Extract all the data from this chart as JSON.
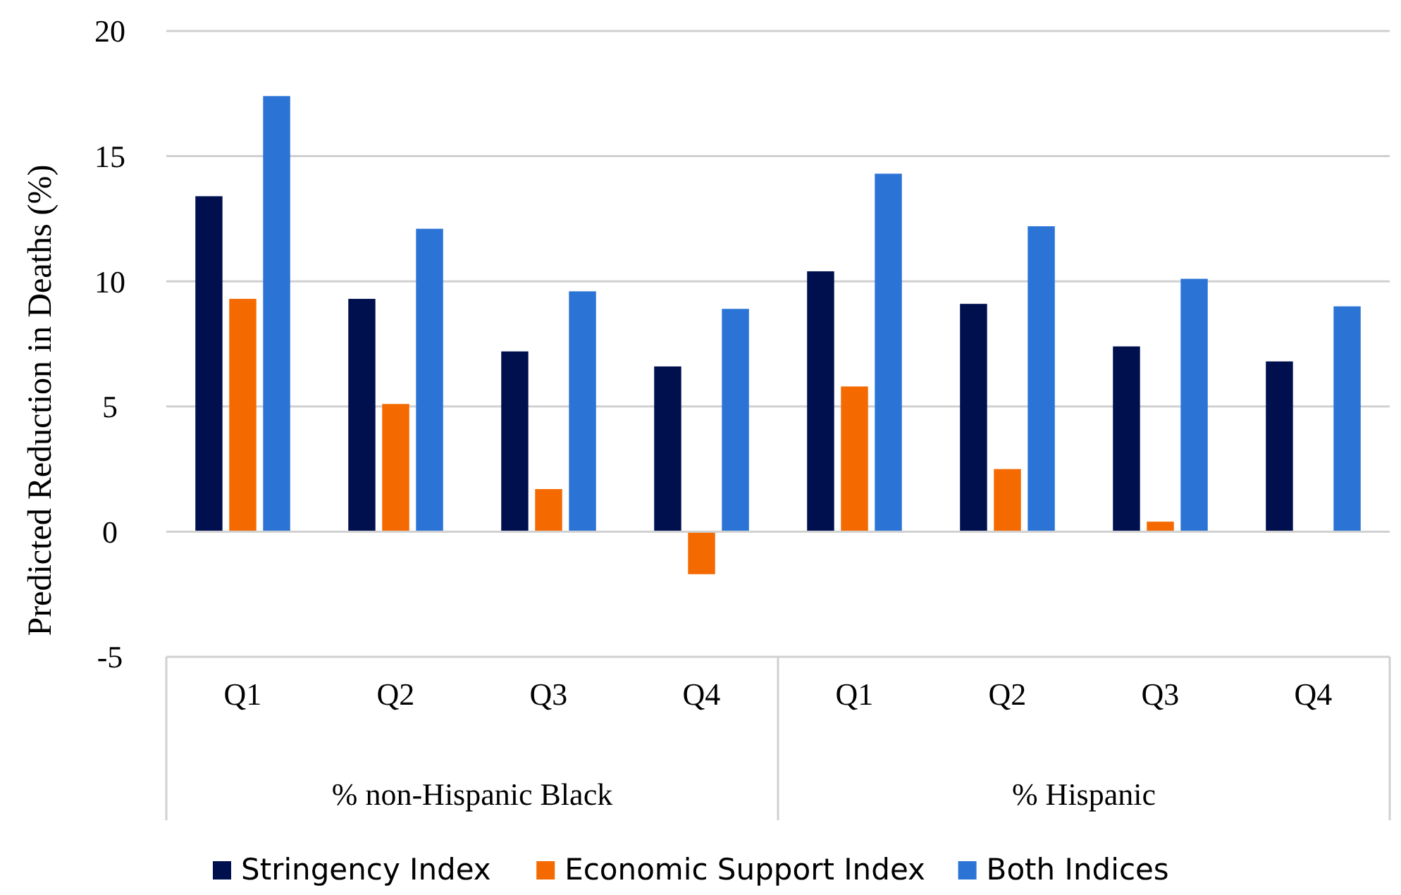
{
  "chart_data": {
    "type": "bar",
    "ylabel": "Predicted Reduction in Deaths (%)",
    "categories": [
      "Q1",
      "Q2",
      "Q3",
      "Q4",
      "Q1",
      "Q2",
      "Q3",
      "Q4"
    ],
    "series": [
      {
        "name": "Stringency Index",
        "color": "#00104f",
        "values": [
          13.4,
          9.3,
          7.2,
          6.6,
          10.4,
          9.1,
          7.4,
          6.8
        ]
      },
      {
        "name": "Economic Support Index",
        "color": "#f56a00",
        "values": [
          9.3,
          5.1,
          1.7,
          -1.7,
          5.8,
          2.5,
          0.4,
          null
        ]
      },
      {
        "name": "Both Indices",
        "color": "#2b74d6",
        "values": [
          17.4,
          12.1,
          9.6,
          8.9,
          14.3,
          12.2,
          10.1,
          9.0
        ]
      }
    ],
    "annotations": [
      "% non-Hispanic Black",
      "% Hispanic"
    ],
    "ylim": [
      -5,
      20
    ],
    "yticks": [
      -5,
      0,
      5,
      10,
      15,
      20
    ],
    "grid": "y",
    "legend": "bottom"
  }
}
